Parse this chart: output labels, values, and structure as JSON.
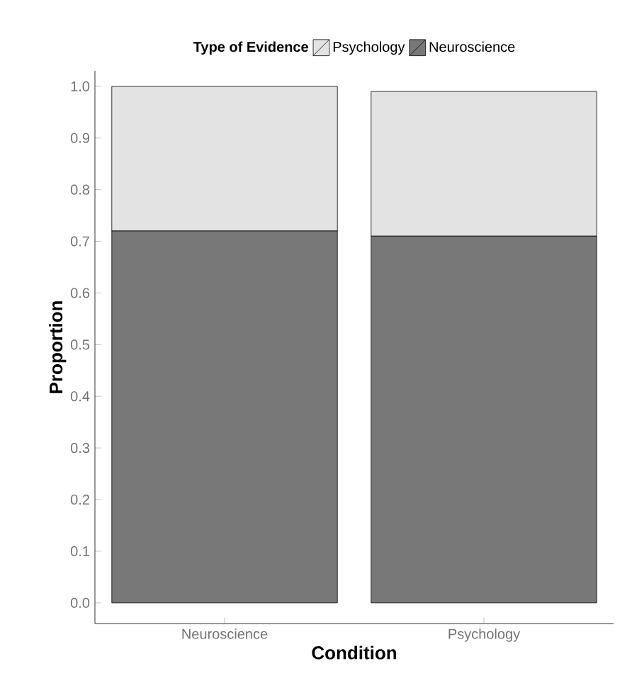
{
  "chart_data": {
    "type": "bar",
    "stacked": true,
    "xlabel": "Condition",
    "ylabel": "Proportion",
    "legend_title": "Type of Evidence",
    "legend": "top",
    "categories": [
      "Neuroscience",
      "Psychology"
    ],
    "series": [
      {
        "name": "Neuroscience",
        "color": "#787878",
        "values": [
          0.72,
          0.71
        ]
      },
      {
        "name": "Psychology",
        "color": "#e3e3e3",
        "values": [
          0.28,
          0.28
        ]
      }
    ],
    "ylim": [
      -0.04,
      1.03
    ],
    "yticks": [
      {
        "value": 0,
        "label": "0.0"
      },
      {
        "value": 0.1,
        "label": "0.1"
      },
      {
        "value": 0.2,
        "label": "0.2"
      },
      {
        "value": 0.3,
        "label": "0.3"
      },
      {
        "value": 0.4,
        "label": "0.4"
      },
      {
        "value": 0.5,
        "label": "0.5"
      },
      {
        "value": 0.6,
        "label": "0.6"
      },
      {
        "value": 0.7,
        "label": "0.7"
      },
      {
        "value": 0.8,
        "label": "0.8"
      },
      {
        "value": 0.9,
        "label": "0.9"
      },
      {
        "value": 1,
        "label": "1.0"
      }
    ]
  }
}
